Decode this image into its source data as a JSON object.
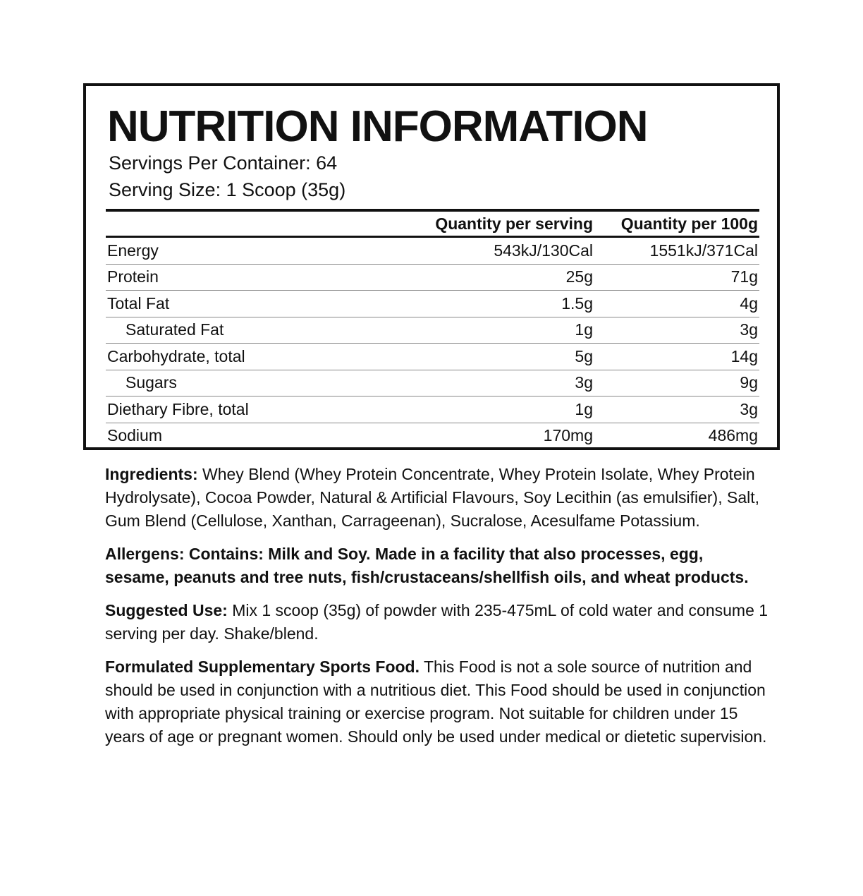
{
  "header": {
    "title": "NUTRITION INFORMATION",
    "servings_per_container": "Servings Per Container: 64",
    "serving_size": "Serving Size: 1 Scoop (35g)"
  },
  "table": {
    "columns": [
      "Quantity per serving",
      "Quantity per 100g"
    ],
    "rows": [
      [
        "Energy",
        "543kJ/130Cal",
        "1551kJ/371Cal"
      ],
      [
        "Protein",
        "25g",
        "71g"
      ],
      [
        "Total Fat",
        "1.5g",
        "4g"
      ],
      [
        "Saturated Fat",
        "1g",
        "3g"
      ],
      [
        "Carbohydrate, total",
        "5g",
        "14g"
      ],
      [
        "Sugars",
        "3g",
        "9g"
      ],
      [
        "Diethary Fibre, total",
        "1g",
        "3g"
      ],
      [
        "Sodium",
        "170mg",
        "486mg"
      ]
    ]
  },
  "ingredients": {
    "label": "Ingredients:",
    "text": "Whey Blend (Whey Protein Concentrate, Whey Protein Isolate, Whey Protein Hydrolysate), Cocoa Powder, Natural & Artificial Flavours, Soy Lecithin (as emulsifier), Salt, Gum Blend (Cellulose, Xanthan, Carrageenan), Sucralose, Acesulfame Potassium."
  },
  "allergens": "Allergens: Contains: Milk and Soy. Made in a facility that also processes, egg, sesame, peanuts and tree nuts, fish/crustaceans/shellfish oils, and wheat products.",
  "suggested_use": {
    "label": "Suggested Use:",
    "text": "Mix 1 scoop (35g) of powder with 235-475mL of cold water and consume 1 serving per day. Shake/blend."
  },
  "notice": {
    "label": "Formulated Supplementary Sports Food.",
    "text": "This Food is not a sole source of nutrition and should be used in conjunction with a nutritious diet. This Food should be used in conjunction with appropriate physical training or exercise program. Not suitable for children under 15 years of age or pregnant women. Should only be used under medical or dietetic supervision."
  }
}
